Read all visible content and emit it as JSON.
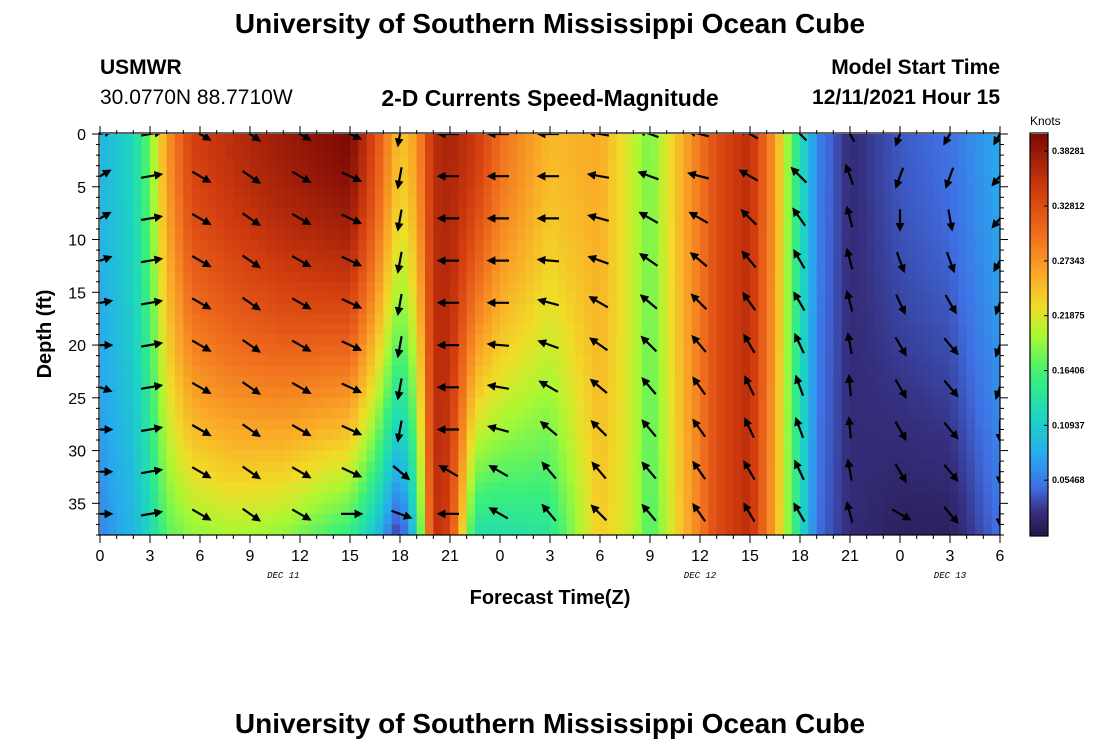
{
  "page": {
    "title": "University of Southern Mississippi Ocean Cube",
    "bottom_title": "University of Southern Mississippi Ocean Cube"
  },
  "station": {
    "id": "USMWR",
    "coords": "30.0770N  88.7710W"
  },
  "model": {
    "label": "Model Start Time",
    "value": "12/11/2021 Hour 15"
  },
  "chart_data": {
    "type": "heatmap",
    "title": "2-D Currents Speed-Magnitude",
    "xlabel": "Forecast Time(Z)",
    "ylabel": "Depth (ft)",
    "x_range_hours": [
      0,
      54
    ],
    "ylim": [
      0,
      38
    ],
    "x_tick_hours": [
      0,
      3,
      6,
      9,
      12,
      15,
      18,
      21,
      24,
      27,
      30,
      33,
      36,
      39,
      42,
      45,
      48,
      51,
      54
    ],
    "x_tick_labels": [
      "0",
      "3",
      "6",
      "9",
      "12",
      "15",
      "18",
      "21",
      "0",
      "3",
      "6",
      "9",
      "12",
      "15",
      "18",
      "21",
      "0",
      "3",
      "6"
    ],
    "y_ticks": [
      0,
      5,
      10,
      15,
      20,
      25,
      30,
      35
    ],
    "y_tick_labels": [
      "0",
      "5",
      "10",
      "15",
      "20",
      "25",
      "30",
      "35"
    ],
    "date_labels": [
      {
        "hour": 11,
        "label": "DEC 11"
      },
      {
        "hour": 36,
        "label": "DEC 12"
      },
      {
        "hour": 51,
        "label": "DEC 13"
      }
    ],
    "colorbar": {
      "title": "Knots",
      "min": 0,
      "max": 0.4
    },
    "colorbar_tick_values": [
      0.38281,
      0.32812,
      0.27343,
      0.21875,
      0.164,
      0.10937,
      0.05468
    ],
    "colorbar_tick_labels": [
      "0.38281",
      "0.32812",
      "0.27343",
      "0.21875",
      "0.16406",
      "0.10937",
      "0.05468"
    ],
    "speed_profile": [
      {
        "hour": 0,
        "surface": 0.09,
        "bottom": 0.06
      },
      {
        "hour": 2,
        "surface": 0.12,
        "bottom": 0.09
      },
      {
        "hour": 3,
        "surface": 0.18,
        "bottom": 0.12
      },
      {
        "hour": 4,
        "surface": 0.27,
        "bottom": 0.17
      },
      {
        "hour": 5.5,
        "surface": 0.34,
        "bottom": 0.19
      },
      {
        "hour": 8,
        "surface": 0.36,
        "bottom": 0.2
      },
      {
        "hour": 11,
        "surface": 0.38,
        "bottom": 0.19
      },
      {
        "hour": 15,
        "surface": 0.4,
        "bottom": 0.15
      },
      {
        "hour": 16.5,
        "surface": 0.33,
        "bottom": 0.1
      },
      {
        "hour": 18,
        "surface": 0.24,
        "bottom": 0.02
      },
      {
        "hour": 19,
        "surface": 0.27,
        "bottom": 0.12
      },
      {
        "hour": 20,
        "surface": 0.36,
        "bottom": 0.36
      },
      {
        "hour": 21,
        "surface": 0.37,
        "bottom": 0.34
      },
      {
        "hour": 22.5,
        "surface": 0.35,
        "bottom": 0.13
      },
      {
        "hour": 24,
        "surface": 0.3,
        "bottom": 0.13
      },
      {
        "hour": 27,
        "surface": 0.25,
        "bottom": 0.14
      },
      {
        "hour": 30,
        "surface": 0.26,
        "bottom": 0.24
      },
      {
        "hour": 32,
        "surface": 0.21,
        "bottom": 0.21
      },
      {
        "hour": 33,
        "surface": 0.18,
        "bottom": 0.16
      },
      {
        "hour": 35,
        "surface": 0.26,
        "bottom": 0.25
      },
      {
        "hour": 37,
        "surface": 0.33,
        "bottom": 0.33
      },
      {
        "hour": 39,
        "surface": 0.36,
        "bottom": 0.36
      },
      {
        "hour": 40.5,
        "surface": 0.27,
        "bottom": 0.26
      },
      {
        "hour": 41.5,
        "surface": 0.17,
        "bottom": 0.17
      },
      {
        "hour": 43,
        "surface": 0.06,
        "bottom": 0.05
      },
      {
        "hour": 45,
        "surface": 0.02,
        "bottom": 0.02
      },
      {
        "hour": 48,
        "surface": 0.04,
        "bottom": 0.01
      },
      {
        "hour": 51,
        "surface": 0.05,
        "bottom": 0.01
      },
      {
        "hour": 54,
        "surface": 0.08,
        "bottom": 0.05
      }
    ],
    "vector_hours": [
      0,
      3,
      6,
      9,
      12,
      15,
      18,
      21,
      24,
      27,
      30,
      33,
      36,
      39,
      42,
      45,
      48,
      51,
      54
    ],
    "vector_depths": [
      0,
      4,
      8,
      12,
      16,
      20,
      24,
      28,
      32,
      36
    ],
    "vector_direction_deg": [
      [
        75,
        60,
        60,
        70,
        80,
        90,
        110,
        90,
        90,
        90
      ],
      [
        80,
        80,
        80,
        80,
        80,
        80,
        80,
        80,
        80,
        80
      ],
      [
        120,
        120,
        120,
        120,
        120,
        120,
        120,
        120,
        120,
        120
      ],
      [
        125,
        125,
        125,
        125,
        125,
        125,
        125,
        125,
        125,
        125
      ],
      [
        120,
        120,
        120,
        120,
        120,
        120,
        120,
        120,
        120,
        120
      ],
      [
        115,
        115,
        115,
        115,
        115,
        115,
        115,
        115,
        115,
        90
      ],
      [
        190,
        190,
        190,
        190,
        190,
        190,
        190,
        190,
        130,
        110
      ],
      [
        270,
        270,
        270,
        270,
        270,
        270,
        270,
        270,
        300,
        270
      ],
      [
        270,
        270,
        270,
        270,
        270,
        275,
        280,
        285,
        300,
        300
      ],
      [
        270,
        270,
        270,
        275,
        285,
        290,
        300,
        310,
        320,
        320
      ],
      [
        280,
        280,
        285,
        290,
        300,
        305,
        310,
        315,
        320,
        315
      ],
      [
        290,
        290,
        300,
        305,
        310,
        315,
        320,
        320,
        320,
        320
      ],
      [
        285,
        285,
        300,
        310,
        315,
        320,
        325,
        325,
        325,
        325
      ],
      [
        300,
        300,
        315,
        320,
        325,
        330,
        335,
        335,
        330,
        330
      ],
      [
        315,
        315,
        325,
        330,
        330,
        335,
        340,
        340,
        335,
        330
      ],
      [
        330,
        340,
        345,
        345,
        345,
        350,
        355,
        355,
        350,
        345
      ],
      [
        200,
        200,
        180,
        160,
        155,
        150,
        150,
        150,
        150,
        120
      ],
      [
        210,
        200,
        170,
        160,
        150,
        140,
        140,
        140,
        140,
        140
      ],
      [
        210,
        220,
        220,
        210,
        200,
        200,
        200,
        180,
        180,
        180
      ]
    ]
  }
}
